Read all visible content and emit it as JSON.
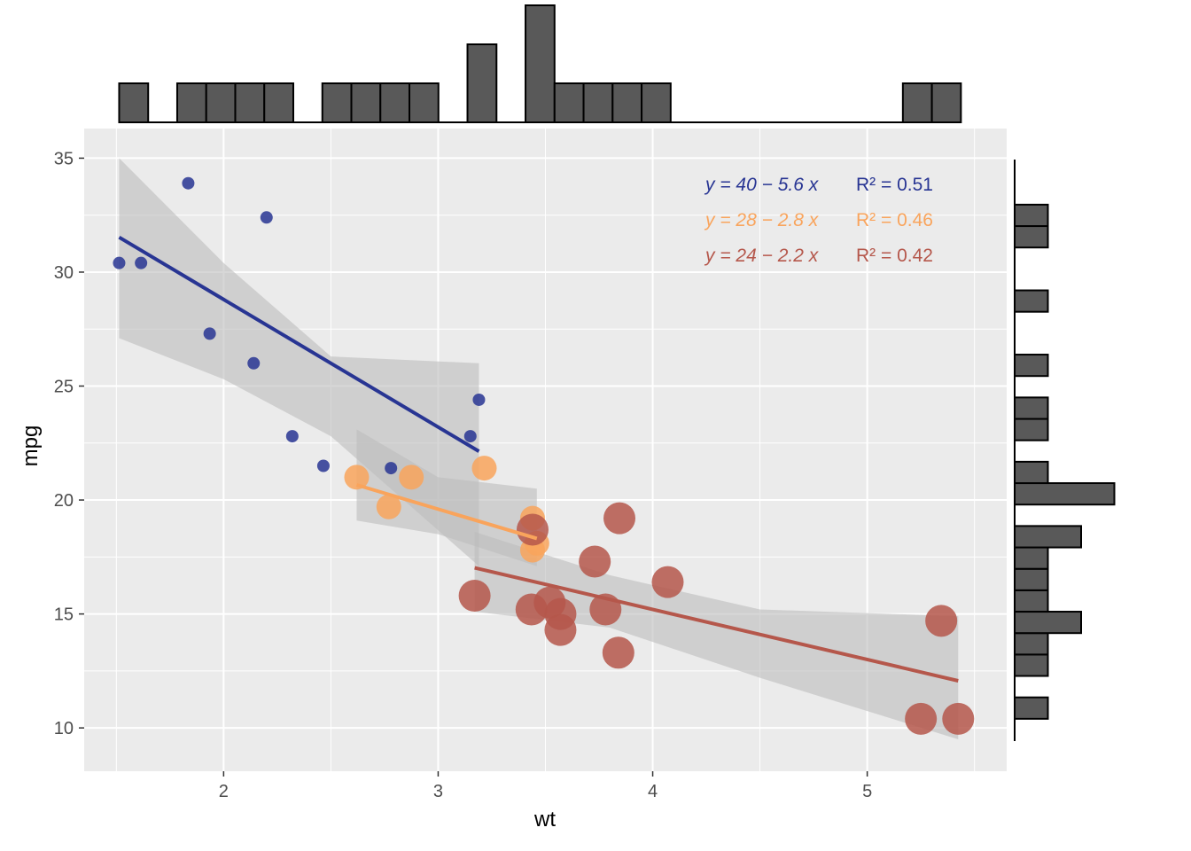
{
  "chart_data": {
    "type": "scatter",
    "xlabel": "wt",
    "ylabel": "mpg",
    "xlim": [
      1.35,
      5.65
    ],
    "ylim": [
      8.1,
      36.3
    ],
    "x_ticks": [
      2,
      3,
      4,
      5
    ],
    "y_ticks": [
      10,
      15,
      20,
      25,
      30,
      35
    ],
    "grid": true,
    "colors": {
      "panel": "#ebebeb",
      "grid": "#ffffff",
      "ribbon": "#bdbdbd",
      "hist_fill": "#595959",
      "hist_stroke": "#000000"
    },
    "series": [
      {
        "color": "#283593",
        "point_radius": 7,
        "points": [
          {
            "x": 1.513,
            "y": 30.4
          },
          {
            "x": 1.615,
            "y": 30.4
          },
          {
            "x": 1.835,
            "y": 33.9
          },
          {
            "x": 1.935,
            "y": 27.3
          },
          {
            "x": 2.14,
            "y": 26.0
          },
          {
            "x": 2.2,
            "y": 32.4
          },
          {
            "x": 2.32,
            "y": 22.8
          },
          {
            "x": 2.465,
            "y": 21.5
          },
          {
            "x": 2.78,
            "y": 21.4
          },
          {
            "x": 3.15,
            "y": 22.8
          },
          {
            "x": 3.19,
            "y": 24.4
          }
        ],
        "fit": {
          "intercept": 40,
          "slope": -5.6,
          "x_range": [
            1.513,
            3.19
          ]
        },
        "ribbon": [
          [
            1.513,
            35.0,
            27.1
          ],
          [
            2.0,
            30.4,
            25.3
          ],
          [
            2.5,
            26.3,
            22.8
          ],
          [
            3.19,
            26.0,
            17.1
          ]
        ],
        "equation": {
          "eq": "y = 40 − 5.6 x",
          "r2": "R² = 0.51"
        }
      },
      {
        "color": "#f9a45c",
        "point_radius": 14,
        "points": [
          {
            "x": 2.62,
            "y": 21.0
          },
          {
            "x": 2.77,
            "y": 19.7
          },
          {
            "x": 2.875,
            "y": 21.0
          },
          {
            "x": 3.215,
            "y": 21.4
          },
          {
            "x": 3.44,
            "y": 19.2
          },
          {
            "x": 3.44,
            "y": 17.8
          },
          {
            "x": 3.46,
            "y": 18.1
          }
        ],
        "fit": {
          "intercept": 28,
          "slope": -2.8,
          "x_range": [
            2.62,
            3.46
          ]
        },
        "ribbon": [
          [
            2.62,
            23.1,
            19.1
          ],
          [
            3.0,
            21.0,
            18.5
          ],
          [
            3.46,
            20.5,
            17.1
          ]
        ],
        "equation": {
          "eq": "y = 28 − 2.8 x",
          "r2": "R² = 0.46"
        }
      },
      {
        "color": "#b5574b",
        "point_radius": 18,
        "points": [
          {
            "x": 3.17,
            "y": 15.8
          },
          {
            "x": 3.435,
            "y": 15.2
          },
          {
            "x": 3.44,
            "y": 18.7
          },
          {
            "x": 3.52,
            "y": 15.5
          },
          {
            "x": 3.57,
            "y": 14.3
          },
          {
            "x": 3.57,
            "y": 15.0
          },
          {
            "x": 3.73,
            "y": 17.3
          },
          {
            "x": 3.78,
            "y": 15.2
          },
          {
            "x": 3.84,
            "y": 13.3
          },
          {
            "x": 3.845,
            "y": 19.2
          },
          {
            "x": 4.07,
            "y": 16.4
          },
          {
            "x": 5.25,
            "y": 10.4
          },
          {
            "x": 5.345,
            "y": 14.7
          },
          {
            "x": 5.424,
            "y": 10.4
          }
        ],
        "fit": {
          "intercept": 24,
          "slope": -2.2,
          "x_range": [
            3.17,
            5.424
          ]
        },
        "ribbon": [
          [
            3.17,
            18.6,
            15.1
          ],
          [
            3.8,
            16.7,
            14.4
          ],
          [
            4.5,
            15.2,
            12.2
          ],
          [
            5.424,
            14.9,
            9.5
          ]
        ],
        "equation": {
          "eq": "y = 24 − 2.2 x",
          "r2": "R² = 0.42"
        }
      }
    ],
    "x_histogram": {
      "bin_start": 1.513,
      "bin_width": 0.1353,
      "counts": [
        1,
        0,
        1,
        1,
        1,
        1,
        0,
        1,
        1,
        1,
        1,
        0,
        2,
        0,
        3,
        1,
        1,
        1,
        1,
        0,
        0,
        0,
        0,
        0,
        0,
        0,
        0,
        1,
        1
      ]
    },
    "y_histogram": {
      "bin_start": 10.4,
      "bin_width": 0.94,
      "counts": [
        1,
        0,
        1,
        1,
        2,
        1,
        1,
        1,
        2,
        0,
        3,
        1,
        0,
        1,
        1,
        0,
        1,
        0,
        0,
        1,
        0,
        0,
        1,
        1
      ]
    }
  }
}
